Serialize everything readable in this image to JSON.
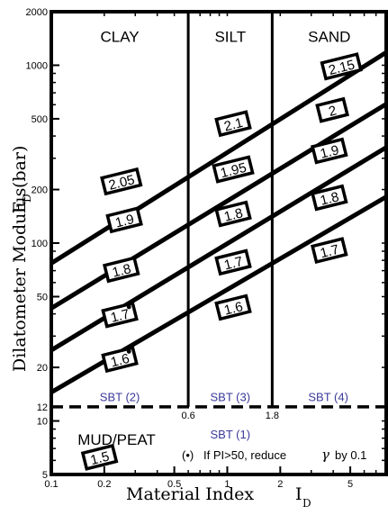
{
  "chart_data": {
    "type": "line",
    "x_scale": "log",
    "y_scale": "log",
    "xlim": [
      0.1,
      8
    ],
    "ylim": [
      5,
      2000
    ],
    "xlabel": "Material Index",
    "xlabel_sub": "I",
    "xlabel_subscript": "D",
    "ylabel": "Dilatometer Modulus",
    "ylabel_symbol": "E",
    "ylabel_subscript": "D",
    "ylabel_unit": "(bar)",
    "x_ticks": [
      {
        "value": 0.1,
        "label": "0.1"
      },
      {
        "value": 0.2,
        "label": "0.2"
      },
      {
        "value": 0.5,
        "label": "0.5"
      },
      {
        "value": 1,
        "label": "1"
      },
      {
        "value": 2,
        "label": "2"
      },
      {
        "value": 5,
        "label": "5"
      }
    ],
    "y_ticks": [
      {
        "value": 5,
        "label": "5"
      },
      {
        "value": 10,
        "label": "10"
      },
      {
        "value": 12,
        "label": "12"
      },
      {
        "value": 20,
        "label": "20"
      },
      {
        "value": 50,
        "label": "50"
      },
      {
        "value": 100,
        "label": "100"
      },
      {
        "value": 200,
        "label": "200"
      },
      {
        "value": 500,
        "label": "500"
      },
      {
        "value": 1000,
        "label": "1000"
      },
      {
        "value": 2000,
        "label": "2000"
      }
    ],
    "boundaries": {
      "vertical": [
        {
          "x": 0.6,
          "label": "0.6"
        },
        {
          "x": 1.8,
          "label": "1.8"
        }
      ],
      "horizontal_dashed": {
        "y": 12
      }
    },
    "series": [
      {
        "points": [
          [
            0.1,
            14.5
          ],
          [
            8,
            182
          ]
        ]
      },
      {
        "points": [
          [
            0.1,
            25
          ],
          [
            8,
            345
          ]
        ]
      },
      {
        "points": [
          [
            0.1,
            43
          ],
          [
            8,
            605
          ]
        ]
      },
      {
        "points": [
          [
            0.1,
            77
          ],
          [
            8,
            1180
          ]
        ]
      }
    ],
    "zone_labels": [
      {
        "text": "CLAY",
        "x": 0.245,
        "y": 1450
      },
      {
        "text": "SILT",
        "x": 1.04,
        "y": 1450
      },
      {
        "text": "SAND",
        "x": 3.8,
        "y": 1450
      },
      {
        "text": "MUD/PEAT",
        "x": 0.235,
        "y": 7.9
      }
    ],
    "soil_behaviour_types": [
      {
        "text": "SBT (2)",
        "x": 0.245,
        "y": 13.7
      },
      {
        "text": "SBT (3)",
        "x": 1.04,
        "y": 13.7
      },
      {
        "text": "SBT (4)",
        "x": 3.75,
        "y": 13.7
      },
      {
        "text": "SBT (1)",
        "x": 1.04,
        "y": 8.45
      }
    ],
    "gamma_boxes": [
      {
        "value": "2.05",
        "x": 0.25,
        "y": 222,
        "marker": false
      },
      {
        "value": "1.9",
        "x": 0.26,
        "y": 135,
        "marker": false
      },
      {
        "value": "1.8",
        "x": 0.25,
        "y": 71,
        "marker": false
      },
      {
        "value": "1.7",
        "x": 0.245,
        "y": 39.5,
        "marker": true
      },
      {
        "value": "1.6",
        "x": 0.245,
        "y": 22.2,
        "marker": true
      },
      {
        "value": "2.1",
        "x": 1.08,
        "y": 470,
        "marker": false
      },
      {
        "value": "1.95",
        "x": 1.08,
        "y": 260,
        "marker": false
      },
      {
        "value": "1.8",
        "x": 1.08,
        "y": 146,
        "marker": false
      },
      {
        "value": "1.7",
        "x": 1.08,
        "y": 78,
        "marker": false
      },
      {
        "value": "1.6",
        "x": 1.08,
        "y": 43.5,
        "marker": false
      },
      {
        "value": "2.15",
        "x": 4.45,
        "y": 985,
        "marker": false
      },
      {
        "value": "2",
        "x": 3.95,
        "y": 560,
        "marker": false
      },
      {
        "value": "1.9",
        "x": 3.8,
        "y": 330,
        "marker": false
      },
      {
        "value": "1.8",
        "x": 3.8,
        "y": 180,
        "marker": false
      },
      {
        "value": "1.7",
        "x": 3.8,
        "y": 91,
        "marker": false
      },
      {
        "value": "1.5",
        "x": 0.188,
        "y": 6.25,
        "marker": false
      }
    ],
    "note": {
      "marker": "(•)",
      "text": "If PI>50, reduce",
      "symbol": "γ",
      "suffix": "by 0.1"
    }
  }
}
